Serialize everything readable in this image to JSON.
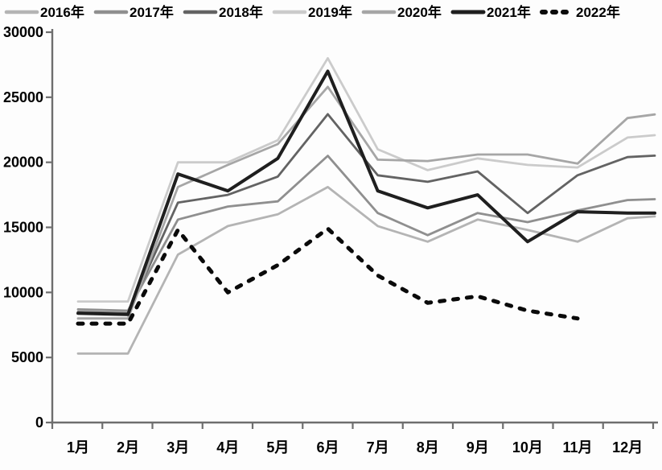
{
  "chart_data": {
    "type": "line",
    "title": "",
    "xlabel": "",
    "ylabel": "",
    "categories": [
      "1月",
      "2月",
      "3月",
      "4月",
      "5月",
      "6月",
      "7月",
      "8月",
      "9月",
      "10月",
      "11月",
      "12月"
    ],
    "y_ticks": [
      0,
      5000,
      10000,
      15000,
      20000,
      25000,
      30000
    ],
    "ylim": [
      0,
      30000
    ],
    "grid": false,
    "legend_position": "top",
    "axis_color": "#6e6e6e",
    "label_color": "#000000",
    "series": [
      {
        "name": "2016年",
        "color": "#b4b4b4",
        "width": 2.8,
        "dash": null,
        "values": [
          5300,
          5300,
          12900,
          15100,
          16000,
          18100,
          15100,
          13900,
          15600,
          14800,
          13900,
          15700
        ]
      },
      {
        "name": "2017年",
        "color": "#8f8f8f",
        "width": 2.8,
        "dash": null,
        "values": [
          8700,
          8600,
          15600,
          16600,
          17000,
          20500,
          16100,
          14400,
          16100,
          15400,
          16300,
          17100
        ]
      },
      {
        "name": "2018年",
        "color": "#636363",
        "width": 2.8,
        "dash": null,
        "values": [
          8500,
          8400,
          16900,
          17500,
          18900,
          23700,
          19000,
          18500,
          19300,
          16100,
          19000,
          20400
        ]
      },
      {
        "name": "2019年",
        "color": "#cbcbcb",
        "width": 2.8,
        "dash": null,
        "values": [
          9300,
          9300,
          20000,
          20000,
          21700,
          28000,
          21000,
          19400,
          20300,
          19800,
          19600,
          21900
        ]
      },
      {
        "name": "2020年",
        "color": "#a6a6a6",
        "width": 2.8,
        "dash": null,
        "values": [
          8000,
          8000,
          18100,
          19800,
          21400,
          25800,
          20200,
          20100,
          20600,
          20600,
          19900,
          23400
        ]
      },
      {
        "name": "2021年",
        "color": "#1f1f1f",
        "width": 4.0,
        "dash": null,
        "values": [
          8400,
          8300,
          19100,
          17800,
          20300,
          27000,
          17800,
          16500,
          17500,
          13900,
          16200,
          16100
        ]
      },
      {
        "name": "2022年",
        "color": "#0a0a0a",
        "width": 5.0,
        "dash": "6 11",
        "values": [
          7600,
          7600,
          14800,
          10000,
          12100,
          14900,
          11300,
          9200,
          9700,
          8600,
          8000,
          null
        ]
      }
    ]
  }
}
